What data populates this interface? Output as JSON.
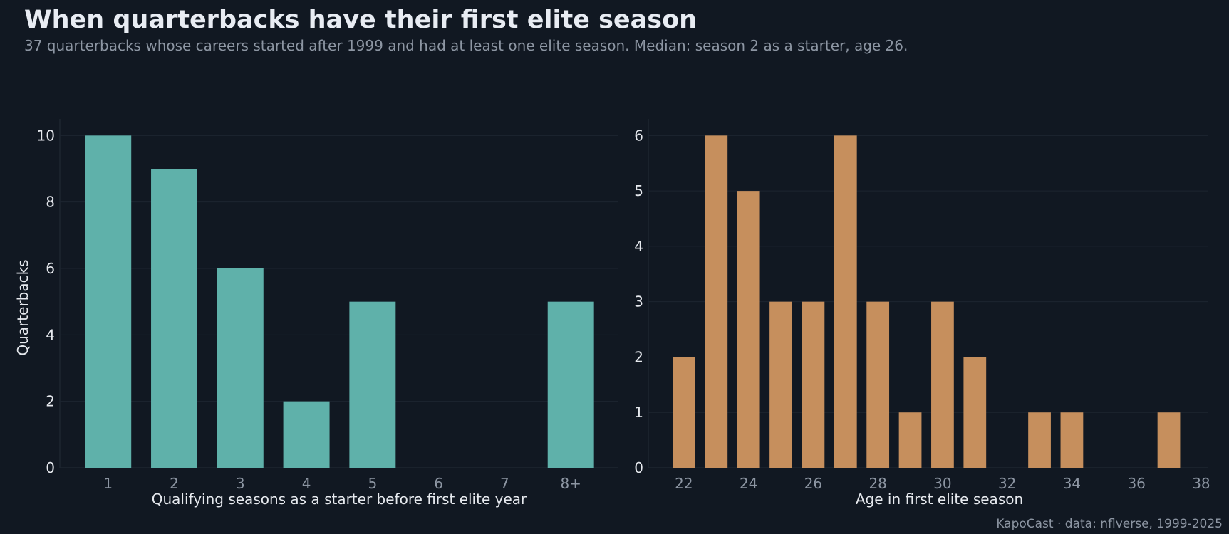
{
  "title": "When quarterbacks have their first elite season",
  "subtitle": "37 quarterbacks whose careers started after 1999 and had at least one elite season. Median: season 2 as a starter, age 26.",
  "footer": "KapoCast · data: nflverse, 1999-2025",
  "colors": {
    "background": "#111822",
    "teal": "#5fb1aa",
    "orange": "#c68f5d",
    "grid": "#1d2530"
  },
  "chart_data": [
    {
      "type": "bar",
      "categories": [
        "1",
        "2",
        "3",
        "4",
        "5",
        "6",
        "7",
        "8+"
      ],
      "values": [
        10,
        9,
        6,
        2,
        5,
        0,
        0,
        5
      ],
      "xlabel": "Qualifying seasons as a starter before first elite year",
      "ylabel": "Quarterbacks",
      "ylim": [
        0,
        10.5
      ],
      "yticks": [
        0,
        2,
        4,
        6,
        8,
        10
      ],
      "color": "#5fb1aa",
      "grid": true
    },
    {
      "type": "bar",
      "x": [
        22,
        23,
        24,
        25,
        26,
        27,
        28,
        29,
        30,
        31,
        33,
        34,
        37
      ],
      "values": [
        2,
        6,
        5,
        3,
        3,
        6,
        3,
        1,
        3,
        2,
        1,
        1,
        1
      ],
      "xlabel": "Age in first elite season",
      "ylabel": "",
      "xlim": [
        20.9,
        38.2
      ],
      "xticks": [
        22,
        24,
        26,
        28,
        30,
        32,
        34,
        36,
        38
      ],
      "ylim": [
        0,
        6.3
      ],
      "yticks": [
        0,
        1,
        2,
        3,
        4,
        5,
        6
      ],
      "color": "#c68f5d",
      "grid": true
    }
  ]
}
